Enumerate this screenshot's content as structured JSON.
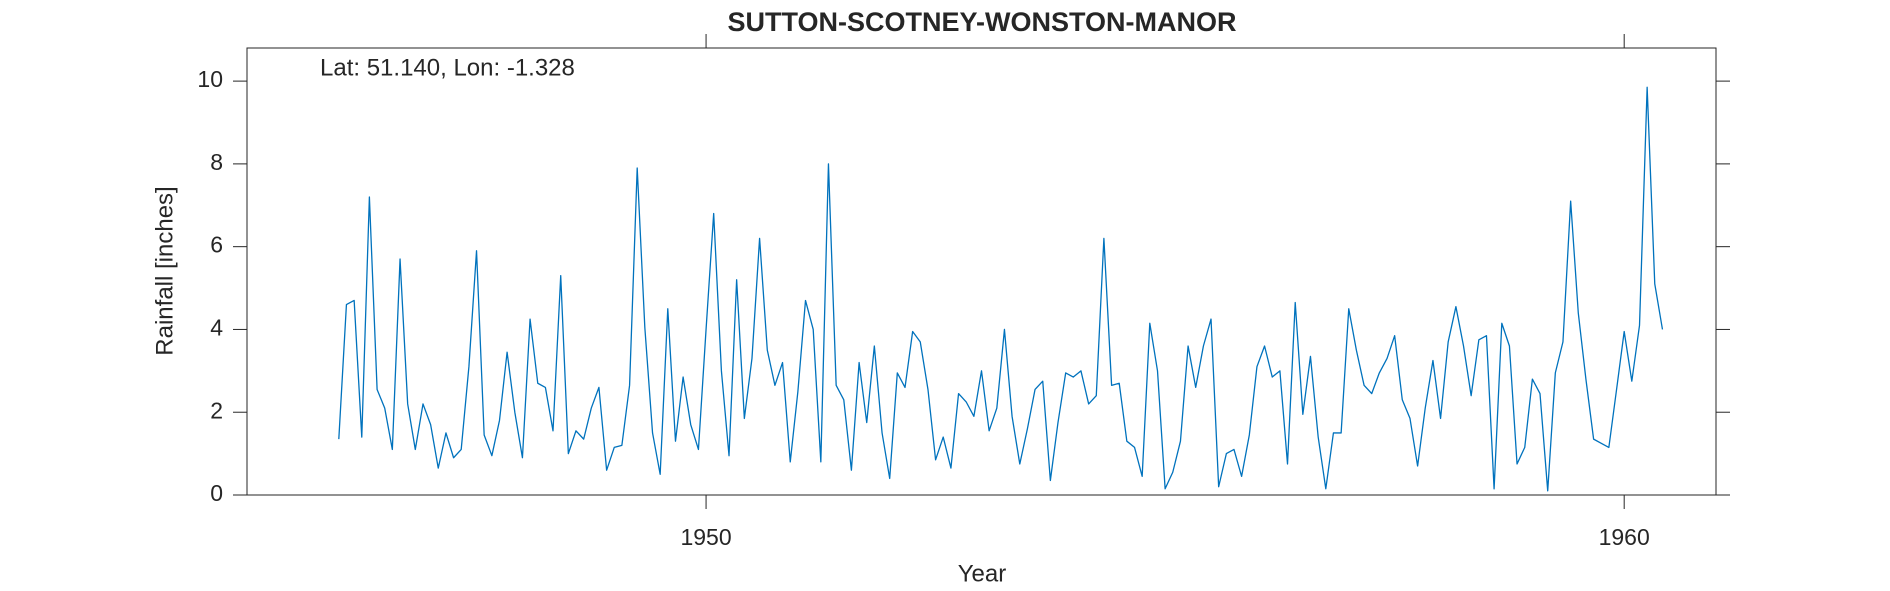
{
  "chart_data": {
    "type": "line",
    "title": "SUTTON-SCOTNEY-WONSTON-MANOR",
    "annotation": "Lat: 51.140, Lon: -1.328",
    "xlabel": "Year",
    "ylabel": "Rainfall [inches]",
    "color": "#0072bd",
    "xlim": [
      1945,
      1961
    ],
    "xticks": [
      1950,
      1960
    ],
    "ylim": [
      0,
      10.8
    ],
    "yticks": [
      0,
      2,
      4,
      6,
      8,
      10
    ],
    "x": [
      1946,
      1946.083,
      1946.167,
      1946.25,
      1946.333,
      1946.417,
      1946.5,
      1946.583,
      1946.667,
      1946.75,
      1946.833,
      1946.917,
      1947,
      1947.083,
      1947.167,
      1947.25,
      1947.333,
      1947.417,
      1947.5,
      1947.583,
      1947.667,
      1947.75,
      1947.833,
      1947.917,
      1948,
      1948.083,
      1948.167,
      1948.25,
      1948.333,
      1948.417,
      1948.5,
      1948.583,
      1948.667,
      1948.75,
      1948.833,
      1948.917,
      1949,
      1949.083,
      1949.167,
      1949.25,
      1949.333,
      1949.417,
      1949.5,
      1949.583,
      1949.667,
      1949.75,
      1949.833,
      1949.917,
      1950,
      1950.083,
      1950.167,
      1950.25,
      1950.333,
      1950.417,
      1950.5,
      1950.583,
      1950.667,
      1950.75,
      1950.833,
      1950.917,
      1951,
      1951.083,
      1951.167,
      1951.25,
      1951.333,
      1951.417,
      1951.5,
      1951.583,
      1951.667,
      1951.75,
      1951.833,
      1951.917,
      1952,
      1952.083,
      1952.167,
      1952.25,
      1952.333,
      1952.417,
      1952.5,
      1952.583,
      1952.667,
      1952.75,
      1952.833,
      1952.917,
      1953,
      1953.083,
      1953.167,
      1953.25,
      1953.333,
      1953.417,
      1953.5,
      1953.583,
      1953.667,
      1953.75,
      1953.833,
      1953.917,
      1954,
      1954.083,
      1954.167,
      1954.25,
      1954.333,
      1954.417,
      1954.5,
      1954.583,
      1954.667,
      1954.75,
      1954.833,
      1954.917,
      1955,
      1955.083,
      1955.167,
      1955.25,
      1955.333,
      1955.417,
      1955.5,
      1955.583,
      1955.667,
      1955.75,
      1955.833,
      1955.917,
      1956,
      1956.083,
      1956.167,
      1956.25,
      1956.333,
      1956.417,
      1956.5,
      1956.583,
      1956.667,
      1956.75,
      1956.833,
      1956.917,
      1957,
      1957.083,
      1957.167,
      1957.25,
      1957.333,
      1957.417,
      1957.5,
      1957.583,
      1957.667,
      1957.75,
      1957.833,
      1957.917,
      1958,
      1958.083,
      1958.167,
      1958.25,
      1958.333,
      1958.417,
      1958.5,
      1958.583,
      1958.667,
      1958.75,
      1958.833,
      1958.917,
      1959,
      1959.083,
      1959.167,
      1959.25,
      1959.333,
      1959.417,
      1959.5,
      1959.583,
      1959.667,
      1959.75,
      1959.833,
      1959.917,
      1960,
      1960.083,
      1960.167,
      1960.25,
      1960.333,
      1960.417
    ],
    "values": [
      1.35,
      4.6,
      4.7,
      1.4,
      7.2,
      2.55,
      2.1,
      1.1,
      5.7,
      2.2,
      1.1,
      2.2,
      1.7,
      0.65,
      1.5,
      0.9,
      1.1,
      3.1,
      5.9,
      1.45,
      0.95,
      1.8,
      3.45,
      2.0,
      0.9,
      4.25,
      2.7,
      2.6,
      1.55,
      5.3,
      1.0,
      1.55,
      1.35,
      2.1,
      2.6,
      0.6,
      1.15,
      1.2,
      2.65,
      7.9,
      4.05,
      1.5,
      0.5,
      4.5,
      1.3,
      2.85,
      1.7,
      1.1,
      4.0,
      6.8,
      3.0,
      0.95,
      5.2,
      1.85,
      3.3,
      6.2,
      3.5,
      2.65,
      3.2,
      0.8,
      2.5,
      4.7,
      4.0,
      0.8,
      8.0,
      2.65,
      2.3,
      0.6,
      3.2,
      1.75,
      3.6,
      1.5,
      0.4,
      2.95,
      2.6,
      3.95,
      3.7,
      2.55,
      0.85,
      1.4,
      0.65,
      2.45,
      2.25,
      1.9,
      3.0,
      1.55,
      2.1,
      4.0,
      1.9,
      0.75,
      1.6,
      2.55,
      2.75,
      0.35,
      1.75,
      2.95,
      2.85,
      3.0,
      2.2,
      2.4,
      6.2,
      2.65,
      2.7,
      1.3,
      1.15,
      0.45,
      4.15,
      3.0,
      0.15,
      0.55,
      1.3,
      3.6,
      2.6,
      3.6,
      4.25,
      0.2,
      1.0,
      1.1,
      0.45,
      1.45,
      3.1,
      3.6,
      2.85,
      3.0,
      0.75,
      4.65,
      1.95,
      3.35,
      1.4,
      0.15,
      1.5,
      1.5,
      4.5,
      3.5,
      2.65,
      2.45,
      2.95,
      3.3,
      3.85,
      2.3,
      1.85,
      0.7,
      2.1,
      3.25,
      1.85,
      3.7,
      4.55,
      3.6,
      2.4,
      3.75,
      3.85,
      0.15,
      4.15,
      3.6,
      0.75,
      1.15,
      2.8,
      2.45,
      0.1,
      2.95,
      3.7,
      7.1,
      4.4,
      2.8,
      1.35,
      1.25,
      1.15,
      2.55,
      3.95,
      2.75,
      4.1,
      9.85,
      5.1,
      4.0
    ]
  }
}
